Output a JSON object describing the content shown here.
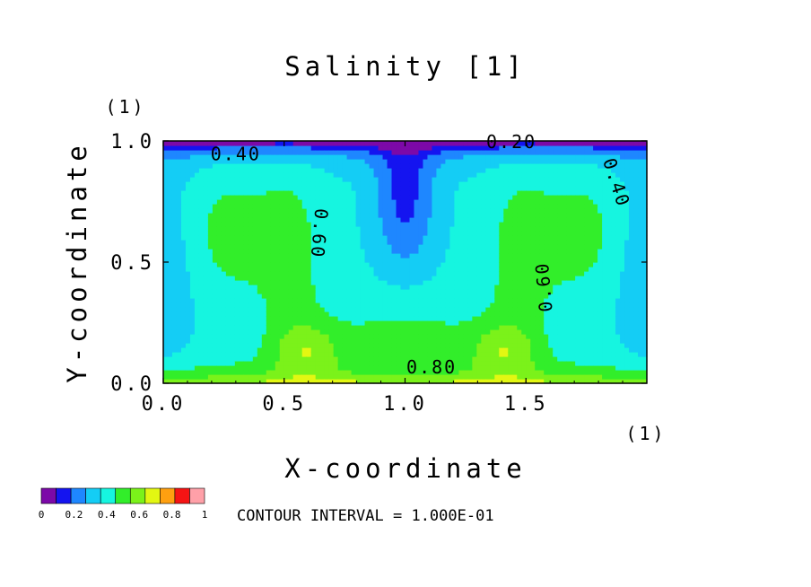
{
  "chart_data": {
    "type": "heatmap",
    "title": "Salinity [1]",
    "xlabel": "X-coordinate",
    "ylabel": "Y-coordinate",
    "x_unit": "(1)",
    "y_unit": "(1)",
    "xlim": [
      0.0,
      2.0
    ],
    "ylim": [
      0.0,
      1.0
    ],
    "x_ticks": [
      "0.0",
      "0.5",
      "1.0",
      "1.5"
    ],
    "y_ticks": [
      "0.0",
      "0.5",
      "1.0"
    ],
    "contour_labels": [
      "0.40",
      "0.20",
      "0.40",
      "0.60",
      "0.60",
      "0.80"
    ],
    "contour_interval_text": "CONTOUR INTERVAL = 1.000E-01",
    "colorbar": {
      "levels": [
        0,
        0.1,
        0.2,
        0.3,
        0.4,
        0.5,
        0.6,
        0.7,
        0.8,
        0.9,
        1.0
      ],
      "tick_labels": [
        "0",
        "0.2",
        "0.4",
        "0.6",
        "0.8",
        "1"
      ],
      "colors": [
        "#7c09a8",
        "#1414f0",
        "#1e87ff",
        "#14cdf5",
        "#16f5e0",
        "#32ee2a",
        "#7bf21a",
        "#e3f712",
        "#ffa010",
        "#f51414",
        "#ffa0a8"
      ]
    }
  }
}
